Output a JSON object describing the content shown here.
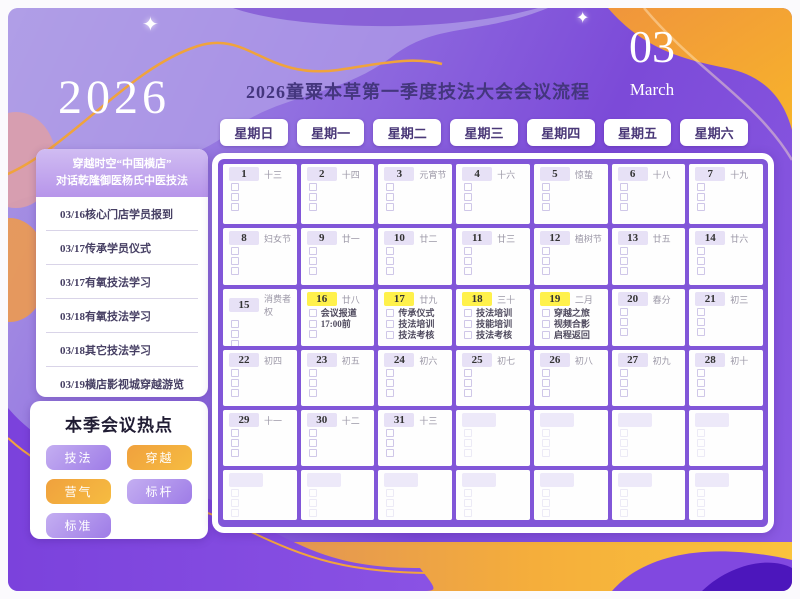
{
  "year": "2026",
  "title": "2026童粟本草第一季度技法大会会议流程",
  "month": {
    "number": "03",
    "name": "March"
  },
  "weekdays": [
    "星期日",
    "星期一",
    "星期二",
    "星期三",
    "星期四",
    "星期五",
    "星期六"
  ],
  "sidebar": {
    "header_line1": "穿越时空“中国横店”",
    "header_line2": "对话乾隆御医杨氏中医技法",
    "items": [
      "03/16核心门店学员报到",
      "03/17传承学员仪式",
      "03/17有氧技法学习",
      "03/18有氧技法学习",
      "03/18其它技法学习",
      "03/19横店影视城穿越游览"
    ]
  },
  "hotspots": {
    "title": "本季会议热点",
    "tags": [
      {
        "label": "技法",
        "color": "purple"
      },
      {
        "label": "穿越",
        "color": "orange"
      },
      {
        "label": "营气",
        "color": "orange"
      },
      {
        "label": "标杆",
        "color": "purple"
      },
      {
        "label": "标准",
        "color": "purple"
      }
    ]
  },
  "calendar": {
    "cells": [
      {
        "day": "1",
        "lunar": "十三",
        "hl": false,
        "events": [],
        "boxes": 3
      },
      {
        "day": "2",
        "lunar": "十四",
        "hl": false,
        "events": [],
        "boxes": 3
      },
      {
        "day": "3",
        "lunar": "元宵节",
        "hl": false,
        "events": [],
        "boxes": 3
      },
      {
        "day": "4",
        "lunar": "十六",
        "hl": false,
        "events": [],
        "boxes": 3
      },
      {
        "day": "5",
        "lunar": "惊蛰",
        "hl": false,
        "events": [],
        "boxes": 3
      },
      {
        "day": "6",
        "lunar": "十八",
        "hl": false,
        "events": [],
        "boxes": 3
      },
      {
        "day": "7",
        "lunar": "十九",
        "hl": false,
        "events": [],
        "boxes": 3
      },
      {
        "day": "8",
        "lunar": "妇女节",
        "hl": false,
        "events": [],
        "boxes": 3
      },
      {
        "day": "9",
        "lunar": "廿一",
        "hl": false,
        "events": [],
        "boxes": 3
      },
      {
        "day": "10",
        "lunar": "廿二",
        "hl": false,
        "events": [],
        "boxes": 3
      },
      {
        "day": "11",
        "lunar": "廿三",
        "hl": false,
        "events": [],
        "boxes": 3
      },
      {
        "day": "12",
        "lunar": "植树节",
        "hl": false,
        "events": [],
        "boxes": 3
      },
      {
        "day": "13",
        "lunar": "廿五",
        "hl": false,
        "events": [],
        "boxes": 3
      },
      {
        "day": "14",
        "lunar": "廿六",
        "hl": false,
        "events": [],
        "boxes": 3
      },
      {
        "day": "15",
        "lunar": "消费者权",
        "hl": false,
        "events": [],
        "boxes": 3
      },
      {
        "day": "16",
        "lunar": "廿八",
        "hl": true,
        "events": [
          "会议报道",
          "17:00前"
        ],
        "boxes": 1
      },
      {
        "day": "17",
        "lunar": "廿九",
        "hl": true,
        "events": [
          "传承仪式",
          "技法培训",
          "技法考核"
        ],
        "boxes": 0
      },
      {
        "day": "18",
        "lunar": "三十",
        "hl": true,
        "events": [
          "技法培训",
          "技能培训",
          "技法考核"
        ],
        "boxes": 0
      },
      {
        "day": "19",
        "lunar": "二月",
        "hl": true,
        "events": [
          "穿越之旅",
          "视频合影",
          "启程返回"
        ],
        "boxes": 0
      },
      {
        "day": "20",
        "lunar": "春分",
        "hl": false,
        "events": [],
        "boxes": 3
      },
      {
        "day": "21",
        "lunar": "初三",
        "hl": false,
        "events": [],
        "boxes": 3
      },
      {
        "day": "22",
        "lunar": "初四",
        "hl": false,
        "events": [],
        "boxes": 3
      },
      {
        "day": "23",
        "lunar": "初五",
        "hl": false,
        "events": [],
        "boxes": 3
      },
      {
        "day": "24",
        "lunar": "初六",
        "hl": false,
        "events": [],
        "boxes": 3
      },
      {
        "day": "25",
        "lunar": "初七",
        "hl": false,
        "events": [],
        "boxes": 3
      },
      {
        "day": "26",
        "lunar": "初八",
        "hl": false,
        "events": [],
        "boxes": 3
      },
      {
        "day": "27",
        "lunar": "初九",
        "hl": false,
        "events": [],
        "boxes": 3
      },
      {
        "day": "28",
        "lunar": "初十",
        "hl": false,
        "events": [],
        "boxes": 3
      },
      {
        "day": "29",
        "lunar": "十一",
        "hl": false,
        "events": [],
        "boxes": 3
      },
      {
        "day": "30",
        "lunar": "十二",
        "hl": false,
        "events": [],
        "boxes": 3
      },
      {
        "day": "31",
        "lunar": "十三",
        "hl": false,
        "events": [],
        "boxes": 3
      },
      {
        "day": "",
        "lunar": "",
        "hl": false,
        "events": [],
        "boxes": 3
      },
      {
        "day": "",
        "lunar": "",
        "hl": false,
        "events": [],
        "boxes": 3
      },
      {
        "day": "",
        "lunar": "",
        "hl": false,
        "events": [],
        "boxes": 3
      },
      {
        "day": "",
        "lunar": "",
        "hl": false,
        "events": [],
        "boxes": 3
      },
      {
        "day": "",
        "lunar": "",
        "hl": false,
        "events": [],
        "boxes": 3
      },
      {
        "day": "",
        "lunar": "",
        "hl": false,
        "events": [],
        "boxes": 3
      },
      {
        "day": "",
        "lunar": "",
        "hl": false,
        "events": [],
        "boxes": 3
      },
      {
        "day": "",
        "lunar": "",
        "hl": false,
        "events": [],
        "boxes": 3
      },
      {
        "day": "",
        "lunar": "",
        "hl": false,
        "events": [],
        "boxes": 3
      },
      {
        "day": "",
        "lunar": "",
        "hl": false,
        "events": [],
        "boxes": 3
      },
      {
        "day": "",
        "lunar": "",
        "hl": false,
        "events": [],
        "boxes": 3
      }
    ]
  },
  "colors": {
    "accent_purple": "#8156d8",
    "accent_orange": "#f0a13d",
    "highlight_yellow": "#fff14b",
    "title_text": "#44367e"
  }
}
